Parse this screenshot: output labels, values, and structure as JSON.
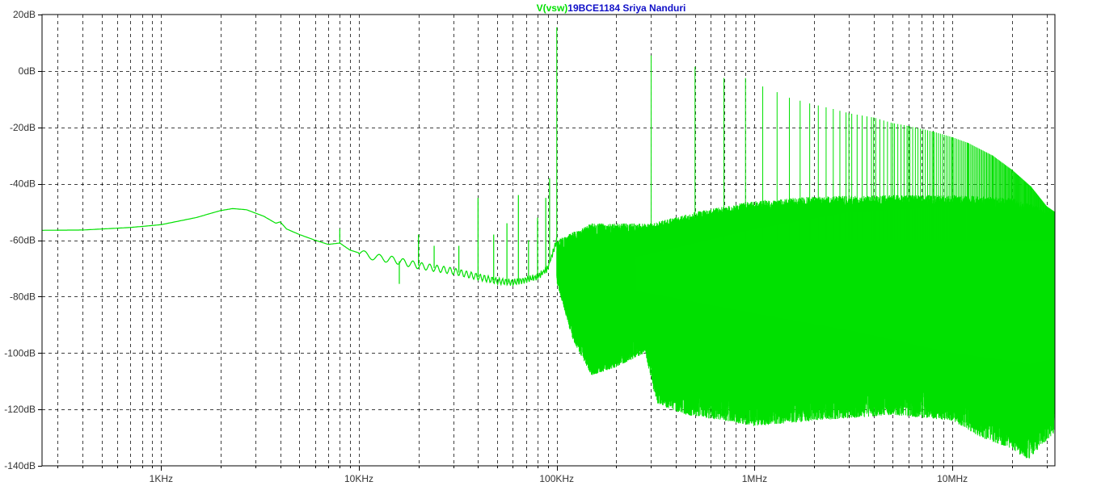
{
  "chart_data": {
    "type": "line",
    "title_trace": "V(vsw)",
    "title_text": "19BCE1184 Sriya Nanduri",
    "xscale": "log",
    "xlim": [
      250,
      33000000
    ],
    "ylim": [
      -140,
      20
    ],
    "grid": true,
    "colors": {
      "trace": "#00e000",
      "trace_label": "#00e000",
      "title": "#1010c8",
      "axis_text": "#333333"
    },
    "x_ticks": [
      {
        "value": 1000,
        "label": "1KHz"
      },
      {
        "value": 10000,
        "label": "10KHz"
      },
      {
        "value": 100000,
        "label": "100KHz"
      },
      {
        "value": 1000000,
        "label": "1MHz"
      },
      {
        "value": 10000000,
        "label": "10MHz"
      }
    ],
    "y_ticks": [
      {
        "value": 20,
        "label": "20dB"
      },
      {
        "value": 0,
        "label": "0dB"
      },
      {
        "value": -20,
        "label": "-20dB"
      },
      {
        "value": -40,
        "label": "-40dB"
      },
      {
        "value": -60,
        "label": "-60dB"
      },
      {
        "value": -80,
        "label": "-80dB"
      },
      {
        "value": -100,
        "label": "-100dB"
      },
      {
        "value": -120,
        "label": "-120dB"
      },
      {
        "value": -140,
        "label": "-140dB"
      }
    ],
    "series": [
      {
        "baseline": [
          [
            250,
            -56.5
          ],
          [
            400,
            -56.4
          ],
          [
            700,
            -55.5
          ],
          [
            1000,
            -54.5
          ],
          [
            1500,
            -52
          ],
          [
            2000,
            -49.5
          ],
          [
            2300,
            -48.8
          ],
          [
            2700,
            -49.2
          ],
          [
            3300,
            -51.5
          ],
          [
            3800,
            -54
          ],
          [
            4000,
            -53.5
          ],
          [
            4300,
            -56
          ],
          [
            5000,
            -58
          ],
          [
            6000,
            -60
          ],
          [
            7000,
            -61.5
          ],
          [
            8000,
            -61
          ],
          [
            9000,
            -63.5
          ],
          [
            10000,
            -64.5
          ],
          [
            12000,
            -66
          ],
          [
            15000,
            -67
          ],
          [
            20000,
            -69
          ],
          [
            30000,
            -71
          ],
          [
            40000,
            -73
          ],
          [
            50000,
            -74.5
          ],
          [
            60000,
            -75
          ],
          [
            70000,
            -74
          ],
          [
            80000,
            -73
          ],
          [
            90000,
            -70
          ],
          [
            95000,
            -65
          ],
          [
            100000,
            -60
          ]
        ],
        "spikes_low": [
          [
            8000,
            -56
          ],
          [
            16000,
            -75.5
          ],
          [
            20000,
            -58
          ],
          [
            24000,
            -62
          ],
          [
            32000,
            -62
          ],
          [
            40000,
            -45
          ],
          [
            48000,
            -58
          ],
          [
            56000,
            -54
          ],
          [
            64000,
            -44
          ],
          [
            72000,
            -60
          ],
          [
            80000,
            -52
          ],
          [
            88000,
            -45
          ],
          [
            92000,
            -38
          ]
        ],
        "carriers": [
          [
            100000,
            15.5
          ],
          [
            300000,
            5.5
          ],
          [
            500000,
            1.5
          ],
          [
            700000,
            -2.5
          ],
          [
            900000,
            -2.5
          ],
          [
            1100000,
            -5.5
          ],
          [
            1300000,
            -7.5
          ],
          [
            1500000,
            -9.5
          ],
          [
            1900000,
            -11.5
          ],
          [
            2500000,
            -13.5
          ],
          [
            3000000,
            -15
          ],
          [
            4000000,
            -16.5
          ],
          [
            5000000,
            -18.5
          ],
          [
            6000000,
            -19.5
          ],
          [
            8000000,
            -21.5
          ],
          [
            10000000,
            -23.5
          ],
          [
            12000000,
            -25.5
          ],
          [
            16000000,
            -30
          ],
          [
            20000000,
            -35
          ],
          [
            25000000,
            -41
          ],
          [
            30000000,
            -48
          ],
          [
            33000000,
            -50
          ]
        ],
        "band_top": [
          [
            100000,
            -60
          ],
          [
            150000,
            -54
          ],
          [
            200000,
            -54
          ],
          [
            300000,
            -54
          ],
          [
            500000,
            -50
          ],
          [
            1000000,
            -46
          ],
          [
            2000000,
            -44.5
          ],
          [
            5000000,
            -44
          ],
          [
            10000000,
            -44
          ],
          [
            20000000,
            -45
          ],
          [
            33000000,
            -50
          ]
        ],
        "band_bottom": [
          [
            100000,
            -75
          ],
          [
            120000,
            -95
          ],
          [
            150000,
            -108
          ],
          [
            200000,
            -105
          ],
          [
            280000,
            -100
          ],
          [
            320000,
            -118
          ],
          [
            450000,
            -122
          ],
          [
            700000,
            -124
          ],
          [
            1000000,
            -126
          ],
          [
            2000000,
            -124
          ],
          [
            5000000,
            -122
          ],
          [
            10000000,
            -124
          ],
          [
            14000000,
            -130
          ],
          [
            20000000,
            -134
          ],
          [
            24000000,
            -138
          ],
          [
            33000000,
            -128
          ]
        ]
      }
    ]
  }
}
